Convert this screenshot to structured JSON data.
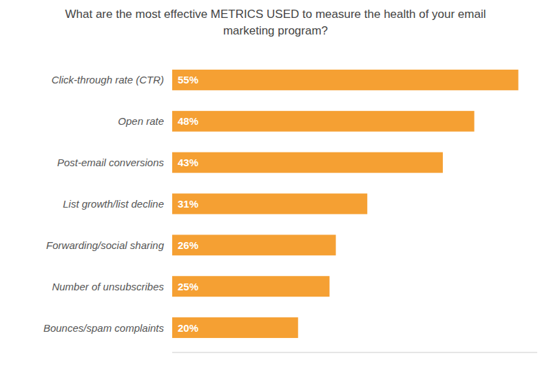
{
  "chart_data": {
    "type": "bar",
    "orientation": "horizontal",
    "title": "What are the most effective METRICS USED to measure the health of your email\nmarketing program?",
    "categories": [
      "Bounces/spam complaints",
      "Number of unsubscribes",
      "Forwarding/social sharing",
      "List growth/list decline",
      "Post-email conversions",
      "Open rate",
      "Click-through rate (CTR)"
    ],
    "values": [
      20,
      25,
      26,
      31,
      43,
      48,
      55
    ],
    "value_labels": [
      "20%",
      "25%",
      "26%",
      "31%",
      "43%",
      "48%",
      "55%"
    ],
    "color": "#F5A033",
    "xlim": [
      0,
      58
    ],
    "xticks": [],
    "data_labels": true,
    "tick_labels": "y",
    "grid": false
  }
}
